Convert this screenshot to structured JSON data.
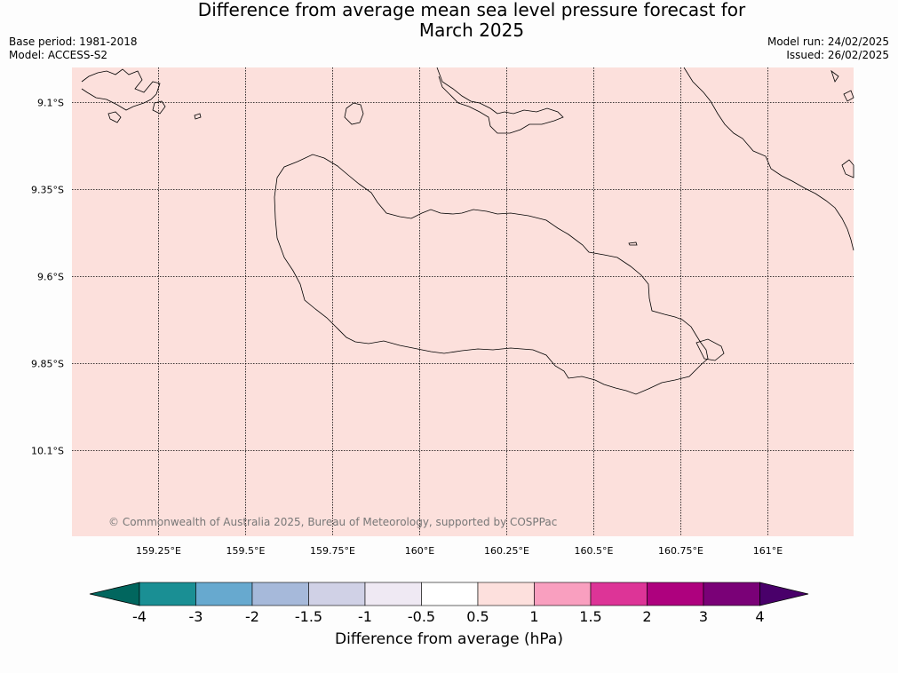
{
  "header": {
    "title_line1": "Difference from average mean sea level pressure forecast for",
    "title_line2": "March 2025",
    "base_period": "Base period: 1981-2018",
    "model": "Model: ACCESS-S2",
    "model_run": "Model run: 24/02/2025",
    "issued": "Issued: 26/02/2025"
  },
  "map": {
    "fill_color": "#fce0dc",
    "lat_labels": [
      "9.1°S",
      "9.35°S",
      "9.6°S",
      "9.85°S",
      "10.1°S"
    ],
    "lon_labels": [
      "159.25°E",
      "159.5°E",
      "159.75°E",
      "160°E",
      "160.25°E",
      "160.5°E",
      "160.75°E",
      "161°E"
    ],
    "copyright": "© Commonwealth of Australia 2025, Bureau of Meteorology, supported by COSPPac"
  },
  "colorbar": {
    "label": "Difference from average (hPa)",
    "ticks": [
      "-4",
      "-3",
      "-2",
      "-1.5",
      "-1",
      "-0.5",
      "0.5",
      "1",
      "1.5",
      "2",
      "3",
      "4"
    ],
    "colors": [
      "#1a8f94",
      "#67a9cf",
      "#a6b9da",
      "#d0d1e6",
      "#efe9f3",
      "#ffffff",
      "#fde0dd",
      "#f99fbf",
      "#dd3497",
      "#ae017e",
      "#7a0177"
    ],
    "under_color": "#01665e",
    "over_color": "#49006a"
  }
}
